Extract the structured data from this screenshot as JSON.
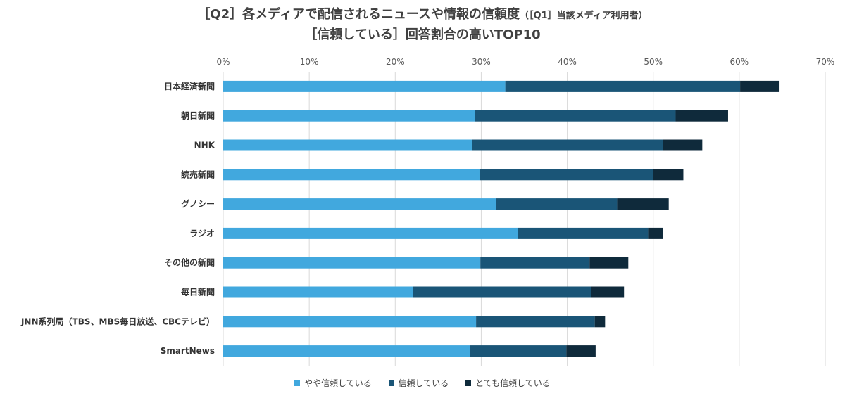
{
  "title": {
    "line1_main": "［Q2］各メディアで配信されるニュースや情報の信頼度",
    "line1_sub": "（［Q1］当該メディア利用者）",
    "line2": "［信頼している］回答割合の高いTOP10"
  },
  "colors": {
    "series1": "#41a8de",
    "series2": "#1a5577",
    "series3": "#0f2a3b",
    "grid": "#d9d9d9"
  },
  "chart_data": {
    "type": "bar",
    "orientation": "horizontal",
    "stacked": true,
    "categories": [
      "日本経済新聞",
      "朝日新聞",
      "NHK",
      "読売新聞",
      "グノシー",
      "ラジオ",
      "その他の新聞",
      "毎日新聞",
      "JNN系列局（TBS、MBS毎日放送、CBCテレビ）",
      "SmartNews"
    ],
    "series": [
      {
        "name": "やや信頼している",
        "values": [
          32.8,
          29.3,
          28.9,
          29.8,
          31.7,
          34.3,
          29.9,
          22.1,
          29.4,
          28.7
        ]
      },
      {
        "name": "信頼している",
        "values": [
          27.3,
          23.3,
          22.2,
          20.2,
          14.1,
          15.1,
          12.7,
          20.7,
          13.8,
          11.2
        ]
      },
      {
        "name": "とても信頼している",
        "values": [
          4.5,
          6.1,
          4.6,
          3.5,
          6.0,
          1.7,
          4.5,
          3.8,
          1.2,
          3.4
        ]
      }
    ],
    "xlim": [
      0,
      70
    ],
    "xticks": [
      "0%",
      "10%",
      "20%",
      "30%",
      "40%",
      "50%",
      "60%",
      "70%"
    ],
    "legend_position": "bottom"
  }
}
